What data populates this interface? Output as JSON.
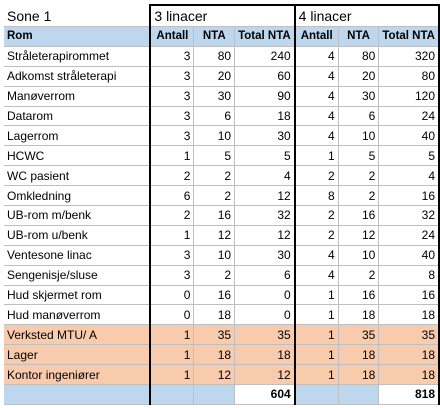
{
  "zone_label": "Sone 1",
  "group_a_title": "3 linacer",
  "group_b_title": "4 linacer",
  "headers": {
    "room": "Rom",
    "a_count": "Antall",
    "a_nta": "NTA",
    "a_total": "Total NTA",
    "b_count": "Antall",
    "b_nta": "NTA",
    "b_total": "Total NTA"
  },
  "rows": [
    {
      "name": "Stråleterapirommet",
      "a_count": "3",
      "a_nta": "80",
      "a_total": "240",
      "b_count": "4",
      "b_nta": "80",
      "b_total": "320",
      "style": "normal"
    },
    {
      "name": "Adkomst stråleterapi",
      "a_count": "3",
      "a_nta": "20",
      "a_total": "60",
      "b_count": "4",
      "b_nta": "20",
      "b_total": "80",
      "style": "normal"
    },
    {
      "name": "Manøverrom",
      "a_count": "3",
      "a_nta": "30",
      "a_total": "90",
      "b_count": "4",
      "b_nta": "30",
      "b_total": "120",
      "style": "normal"
    },
    {
      "name": "Datarom",
      "a_count": "3",
      "a_nta": "6",
      "a_total": "18",
      "b_count": "4",
      "b_nta": "6",
      "b_total": "24",
      "style": "normal"
    },
    {
      "name": "Lagerrom",
      "a_count": "3",
      "a_nta": "10",
      "a_total": "30",
      "b_count": "4",
      "b_nta": "10",
      "b_total": "40",
      "style": "normal"
    },
    {
      "name": "HCWC",
      "a_count": "1",
      "a_nta": "5",
      "a_total": "5",
      "b_count": "1",
      "b_nta": "5",
      "b_total": "5",
      "style": "normal"
    },
    {
      "name": "WC pasient",
      "a_count": "2",
      "a_nta": "2",
      "a_total": "4",
      "b_count": "2",
      "b_nta": "2",
      "b_total": "4",
      "style": "normal"
    },
    {
      "name": "Omkledning",
      "a_count": "6",
      "a_nta": "2",
      "a_total": "12",
      "b_count": "8",
      "b_nta": "2",
      "b_total": "16",
      "style": "normal"
    },
    {
      "name": "UB-rom m/benk",
      "a_count": "2",
      "a_nta": "16",
      "a_total": "32",
      "b_count": "2",
      "b_nta": "16",
      "b_total": "32",
      "style": "normal"
    },
    {
      "name": "UB-rom u/benk",
      "a_count": "1",
      "a_nta": "12",
      "a_total": "12",
      "b_count": "2",
      "b_nta": "12",
      "b_total": "24",
      "style": "normal"
    },
    {
      "name": "Ventesone linac",
      "a_count": "3",
      "a_nta": "10",
      "a_total": "30",
      "b_count": "4",
      "b_nta": "10",
      "b_total": "40",
      "style": "normal"
    },
    {
      "name": "Sengenisje/sluse",
      "a_count": "3",
      "a_nta": "2",
      "a_total": "6",
      "b_count": "4",
      "b_nta": "2",
      "b_total": "8",
      "style": "normal"
    },
    {
      "name": "Hud skjermet rom",
      "a_count": "0",
      "a_nta": "16",
      "a_total": "0",
      "b_count": "1",
      "b_nta": "16",
      "b_total": "16",
      "style": "normal"
    },
    {
      "name": "Hud manøverrom",
      "a_count": "0",
      "a_nta": "18",
      "a_total": "0",
      "b_count": "1",
      "b_nta": "18",
      "b_total": "18",
      "style": "normal"
    },
    {
      "name": "Verksted MTU/ A",
      "a_count": "1",
      "a_nta": "35",
      "a_total": "35",
      "b_count": "1",
      "b_nta": "35",
      "b_total": "35",
      "style": "orange"
    },
    {
      "name": "Lager",
      "a_count": "1",
      "a_nta": "18",
      "a_total": "18",
      "b_count": "1",
      "b_nta": "18",
      "b_total": "18",
      "style": "orange"
    },
    {
      "name": "Kontor ingeniører",
      "a_count": "1",
      "a_nta": "12",
      "a_total": "12",
      "b_count": "1",
      "b_nta": "18",
      "b_total": "18",
      "style": "orange"
    }
  ],
  "totals": {
    "a_total": "604",
    "b_total": "818"
  },
  "colors": {
    "header_blue": "#bdd7ee",
    "orange_rows": "#f8cbad",
    "grid_line": "#bfbfbf"
  }
}
